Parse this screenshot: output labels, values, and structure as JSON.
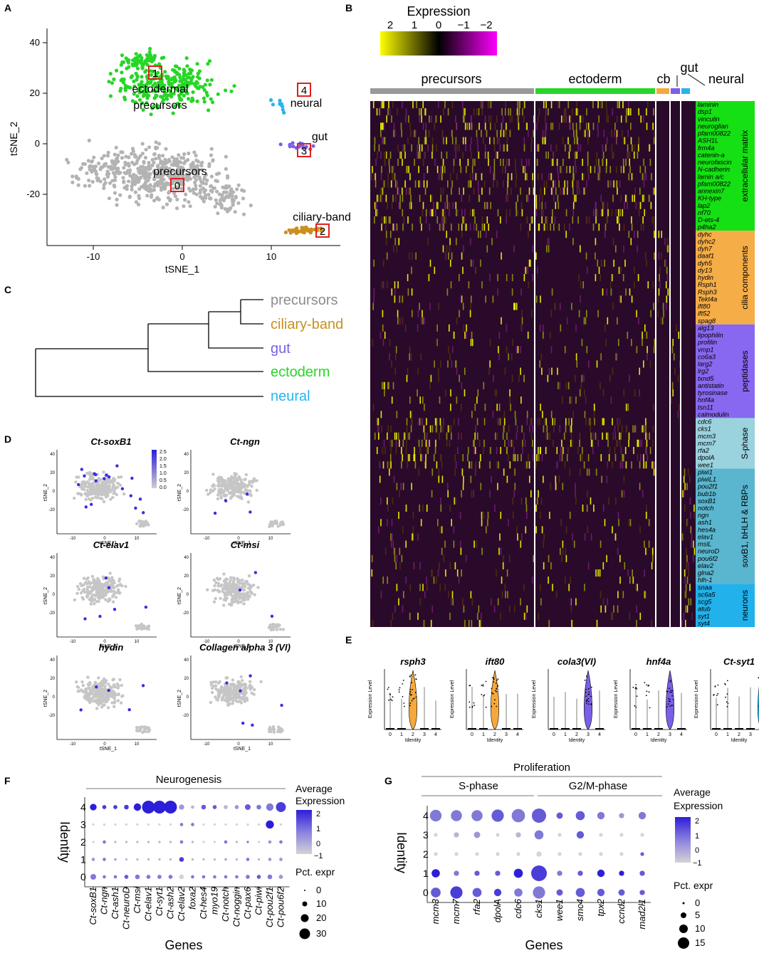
{
  "colors": {
    "precursors": "#b3b3b3",
    "ectoderm": "#27d627",
    "cb": "#f5a93c",
    "gut": "#7b5fe8",
    "neural": "#25b5ea",
    "ciliary": "#c9901f",
    "ecm_box": "#14e014",
    "cilia_box": "#f5ad48",
    "pept_box": "#8868f0",
    "sphase_box": "#9ad2de",
    "soxb_box": "#5ab6cf",
    "neuron_box": "#22b1ea",
    "red_box": "#e02020",
    "dot_high": "#2d1ed8",
    "dot_low": "#d4d4d4"
  },
  "panel_labels": [
    "A",
    "B",
    "C",
    "D",
    "E",
    "F",
    "G"
  ],
  "panelA": {
    "xlabel": "tSNE_1",
    "ylabel": "tSNE_2",
    "xticks": [
      "-10",
      "0",
      "10"
    ],
    "yticks": [
      "40",
      "20",
      "0",
      "-20"
    ],
    "cluster_labels": {
      "ectodermal": "ectodermal",
      "precursors_line": "precursors",
      "neural": "neural",
      "gut": "gut",
      "precursors": "precursors",
      "ciliary": "ciliary-band"
    },
    "ids": [
      "1",
      "4",
      "3",
      "0",
      "2"
    ]
  },
  "panelB": {
    "legend_title": "Expression",
    "legend_ticks": [
      "2",
      "1",
      "0",
      "−1",
      "−2"
    ],
    "groups": [
      "precursors",
      "ectoderm",
      "cb",
      "gut",
      "neural"
    ],
    "gene_groups": [
      {
        "label": "extracellular matrix",
        "genes": [
          "laminin",
          "dsp1",
          "vinculin",
          "neuroglian",
          "pfam00822",
          "ASH1L",
          "frm4a",
          "catenin-a",
          "neurofascin",
          "N-cadherin",
          "lamin a/c",
          "pfam00822",
          "annexin7",
          "KH-type",
          "lap2",
          "nf70",
          "D-ets-4",
          "p4ha2"
        ]
      },
      {
        "label": "cilia components",
        "genes": [
          "dyhc",
          "dyhc2",
          "dyh7",
          "daaf1",
          "dyh5",
          "dy13",
          "hydin",
          "Rsph1",
          "Rsph3",
          "Tekt4a",
          "ift80",
          "ift52",
          "spag8"
        ]
      },
      {
        "label": "peptidases",
        "genes": [
          "alg13",
          "lipophilin",
          "profilin",
          "vmp1",
          "co6a3",
          "larg2",
          "lrg2",
          "txnd5",
          "antistatin",
          "tyrosinase",
          "hnf4a",
          "tsn11",
          "calmodulin"
        ]
      },
      {
        "label": "S-phase",
        "genes": [
          "cdc6",
          "cks1",
          "mcm3",
          "mcm7",
          "rfa2",
          "dpolA",
          "wee1"
        ]
      },
      {
        "label": "soxB1, bHLH & RBPs",
        "genes": [
          "piwi1",
          "piwiL1",
          "pou2f1",
          "bub1b",
          "soxB1",
          "notch",
          "ngn",
          "ash1",
          "hes4a",
          "elav1",
          "msiL",
          "neuroD",
          "pou6f2",
          "elav2",
          "glna2",
          "hlh-1"
        ]
      },
      {
        "label": "neurons",
        "genes": [
          "snaa",
          "sc6a5",
          "scg5",
          "atub",
          "syt1",
          "syt4"
        ]
      }
    ]
  },
  "panelC": {
    "leaves": [
      "precursors",
      "ciliary-band",
      "gut",
      "ectoderm",
      "neural"
    ]
  },
  "panelD": {
    "titles": [
      "Ct-soxB1",
      "Ct-ngn",
      "Ct-elav1",
      "Ct-msi",
      "hydin",
      "Collagen alpha 3 (VI)"
    ],
    "xlabel": "tSNE_1",
    "ylabel": "tSNE_2",
    "xticks": [
      "-10",
      "0",
      "10"
    ],
    "yticks": [
      "40",
      "20",
      "0",
      "-20"
    ],
    "scale_ticks": [
      "2.5",
      "2.0",
      "1.5",
      "1.0",
      "0.5",
      "0.0"
    ]
  },
  "panelE": {
    "titles": [
      "rsph3",
      "ift80",
      "cola3(VI)",
      "hnf4a",
      "Ct-syt1"
    ],
    "ylabel": "Expression Level",
    "xlabel": "Identity",
    "xticks": [
      "0",
      "1",
      "2",
      "3",
      "4"
    ],
    "yticks": [
      "0",
      "1",
      "2",
      "3"
    ],
    "highlight_identity": [
      2,
      2,
      3,
      3,
      4
    ]
  },
  "panelF": {
    "group_title": "Neurogenesis",
    "genes": [
      "Ct-soxB1",
      "Ct-ngn",
      "Ct-ash1",
      "Ct-neuroD",
      "Ct-msi",
      "Ct-elav1",
      "Ct-syt1",
      "Ct-ash2",
      "Ct-elav2",
      "foxa2",
      "Ct-hes4",
      "myo19",
      "Ct-notch",
      "Ct-noggin",
      "Ct-pax6",
      "Ct-piwi",
      "Ct-pou2f1",
      "Ct-pou6f2"
    ],
    "identities": [
      "4",
      "3",
      "2",
      "1",
      "0"
    ],
    "ylabel": "Identity",
    "xlabel": "Genes",
    "legend_title_1": "Average",
    "legend_title_2": "Expression",
    "legend_ticks": [
      "2",
      "1",
      "0",
      "−1"
    ],
    "size_title": "Pct. expr",
    "size_ticks": [
      "0",
      "10",
      "20",
      "30"
    ],
    "chart_data": {
      "type": "dotplot",
      "pct": [
        [
          8,
          3,
          3,
          4,
          10,
          30,
          30,
          30,
          5,
          2,
          4,
          3,
          3,
          3,
          6,
          4,
          10,
          18
        ],
        [
          1,
          1,
          1,
          1,
          1,
          1,
          1,
          1,
          2,
          2,
          1,
          1,
          1,
          1,
          1,
          1,
          12,
          1
        ],
        [
          1,
          2,
          1,
          1,
          1,
          1,
          1,
          1,
          2,
          1,
          1,
          1,
          2,
          1,
          1,
          1,
          2,
          2
        ],
        [
          2,
          2,
          1,
          1,
          1,
          1,
          1,
          1,
          4,
          1,
          1,
          1,
          1,
          1,
          2,
          1,
          2,
          2
        ],
        [
          6,
          2,
          2,
          3,
          4,
          3,
          3,
          3,
          4,
          2,
          2,
          2,
          2,
          2,
          3,
          3,
          4,
          3
        ]
      ],
      "avg": [
        [
          2,
          1.5,
          1.5,
          1.5,
          2,
          2,
          2,
          2,
          0,
          -0.5,
          1,
          1,
          -0.5,
          0,
          1,
          0.5,
          0.5,
          1.5
        ],
        [
          -1,
          -1,
          -1,
          -1,
          -1,
          -1,
          -1,
          -1,
          0.5,
          0.5,
          -1,
          -1,
          -1,
          -1,
          -1,
          -1,
          2,
          -1
        ],
        [
          -1,
          0.5,
          -0.5,
          -0.5,
          -0.5,
          -0.5,
          -0.5,
          -0.5,
          0.5,
          -0.5,
          -1,
          -1,
          0.5,
          -0.5,
          0.5,
          -1,
          0,
          0.5
        ],
        [
          0,
          0.5,
          0,
          -0.5,
          -0.5,
          -0.5,
          -0.5,
          -0.5,
          1.5,
          -0.5,
          -0.5,
          -0.5,
          0,
          -0.5,
          0.5,
          -0.5,
          0,
          0
        ],
        [
          0.5,
          0.5,
          0.5,
          1,
          0.5,
          0.5,
          0.5,
          0.5,
          -1,
          0.5,
          0.5,
          0.5,
          0.5,
          0.5,
          0.5,
          1,
          0.5,
          0
        ]
      ]
    }
  },
  "panelG": {
    "group_title": "Proliferation",
    "sub1": "S-phase",
    "sub2": "G2/M-phase",
    "genes": [
      "mcm3",
      "mcm7",
      "rfa2",
      "dpolA",
      "cdc6",
      "cks1",
      "wee1",
      "smc4",
      "tpx2",
      "ccnd2",
      "mad2l1"
    ],
    "identities": [
      "4",
      "3",
      "2",
      "1",
      "0"
    ],
    "ylabel": "Identity",
    "xlabel": "Genes",
    "legend_title_1": "Average",
    "legend_title_2": "Expression",
    "legend_ticks": [
      "2",
      "1",
      "0",
      "−1"
    ],
    "size_title": "Pct. expr",
    "size_ticks": [
      "0",
      "5",
      "10",
      "15"
    ],
    "chart_data": {
      "type": "dotplot",
      "pct": [
        [
          10,
          9,
          9,
          11,
          13,
          15,
          3,
          6,
          4,
          2,
          4
        ],
        [
          1,
          2,
          3,
          1,
          2,
          6,
          1,
          4,
          1,
          1,
          1
        ],
        [
          1,
          1,
          1,
          1,
          1,
          2,
          1,
          1,
          1,
          1,
          1
        ],
        [
          5,
          2,
          2,
          2,
          6,
          18,
          2,
          2,
          4,
          2,
          2
        ],
        [
          7,
          11,
          6,
          4,
          5,
          11,
          3,
          6,
          4,
          3,
          2
        ]
      ],
      "avg": [
        [
          0.5,
          0.5,
          0.5,
          1,
          0.5,
          1,
          1,
          1,
          0.5,
          0,
          0.5
        ],
        [
          -1,
          -0.5,
          0,
          -1,
          -0.5,
          0.5,
          -1,
          1,
          -1,
          -1,
          -1
        ],
        [
          -1,
          -1,
          -1,
          -1,
          -1,
          -1,
          -1,
          -1,
          -1,
          -1,
          1
        ],
        [
          2,
          0.5,
          1,
          1,
          2,
          1.5,
          0.5,
          1,
          2,
          2,
          1
        ],
        [
          1,
          1.5,
          1,
          1.5,
          0.5,
          0.5,
          1,
          1,
          1,
          1,
          1
        ]
      ]
    }
  }
}
